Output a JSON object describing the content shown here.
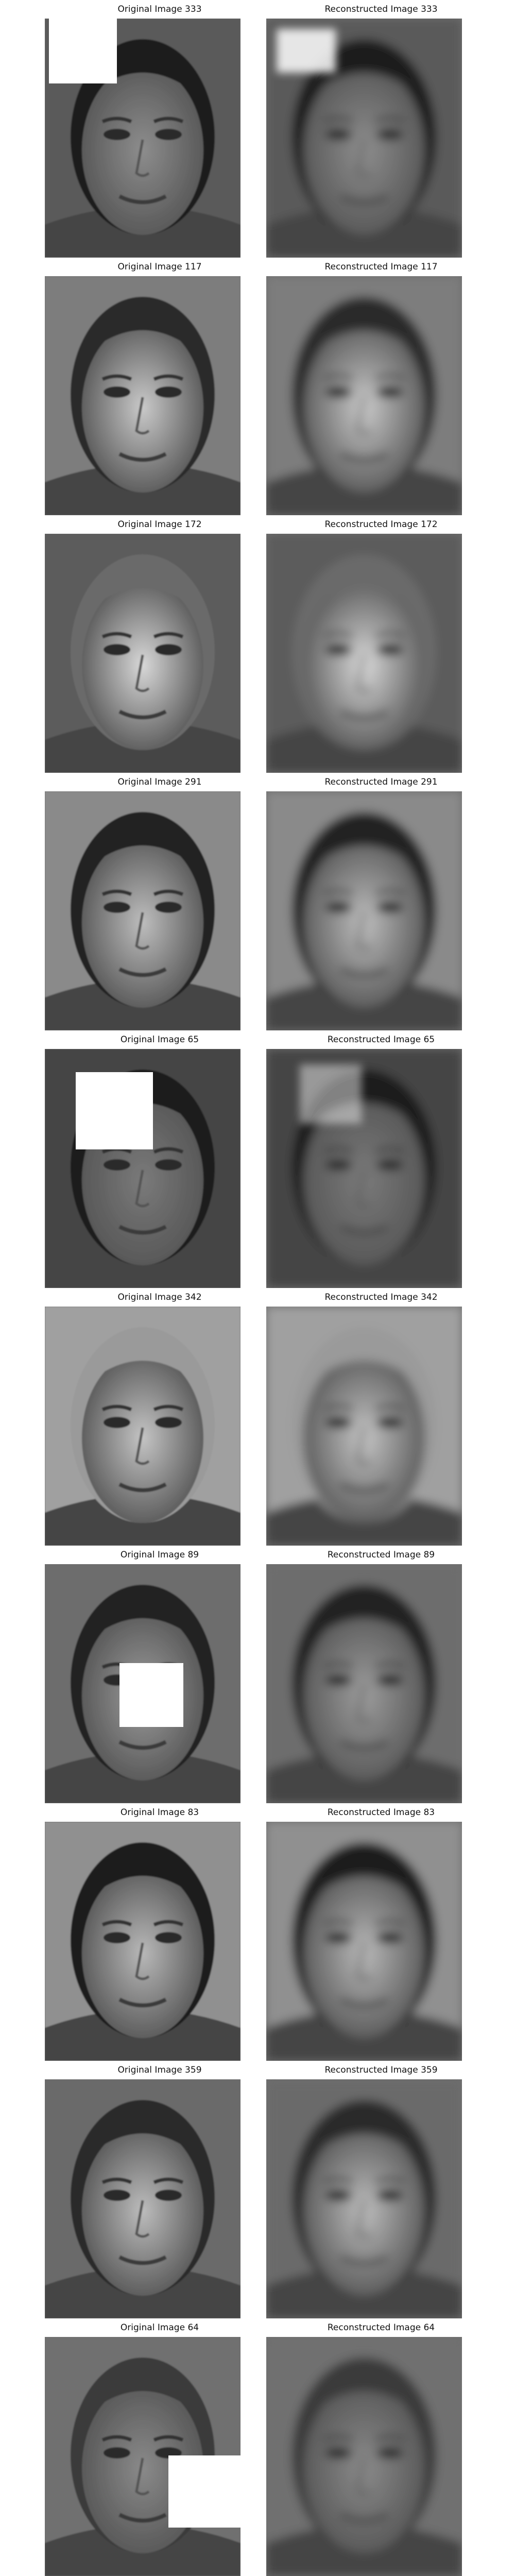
{
  "panels": [
    {
      "original_title": "Original Image 333",
      "reconstructed_title": "Reconstructed Image 333"
    },
    {
      "original_title": "Original Image 117",
      "reconstructed_title": "Reconstructed Image 117"
    },
    {
      "original_title": "Original Image 172",
      "reconstructed_title": "Reconstructed Image 172"
    },
    {
      "original_title": "Original Image 291",
      "reconstructed_title": "Reconstructed Image 291"
    },
    {
      "original_title": "Original Image 65",
      "reconstructed_title": "Reconstructed Image 65"
    },
    {
      "original_title": "Original Image 342",
      "reconstructed_title": "Reconstructed Image 342"
    },
    {
      "original_title": "Original Image 89",
      "reconstructed_title": "Reconstructed Image 89"
    },
    {
      "original_title": "Original Image 83",
      "reconstructed_title": "Reconstructed Image 83"
    },
    {
      "original_title": "Original Image 359",
      "reconstructed_title": "Reconstructed Image 359"
    },
    {
      "original_title": "Original Image 64",
      "reconstructed_title": "Reconstructed Image 64"
    }
  ]
}
